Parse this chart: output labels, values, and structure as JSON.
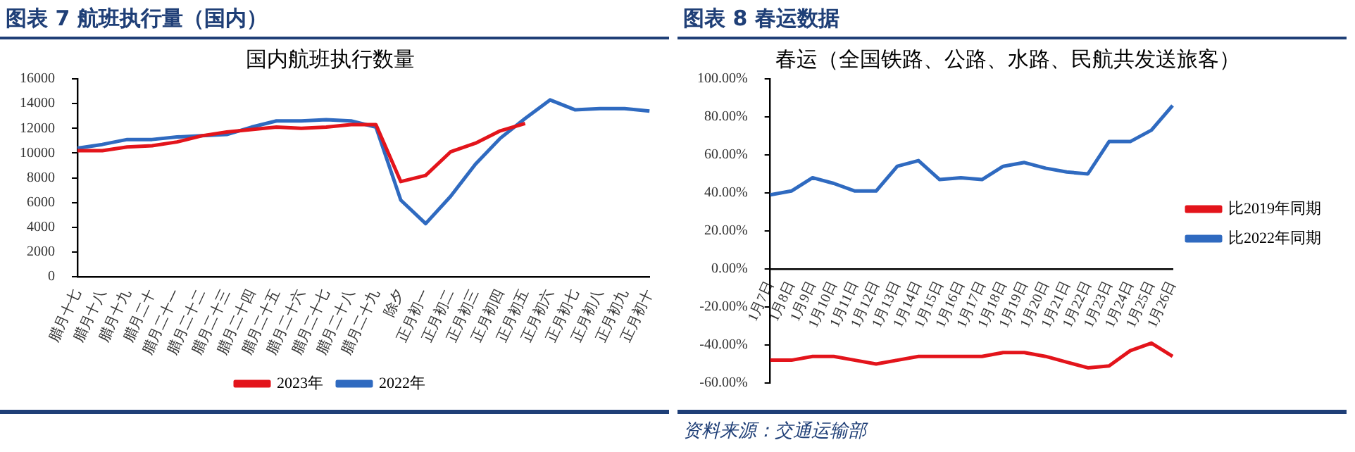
{
  "chart_data": [
    {
      "type": "line",
      "title": "图表 7 航班执行量（国内）",
      "subtitle": "国内航班执行数量",
      "categories": [
        "腊月十七",
        "腊月十八",
        "腊月十九",
        "腊月二十",
        "腊月二十一",
        "腊月二十二",
        "腊月二十三",
        "腊月二十四",
        "腊月二十五",
        "腊月二十六",
        "腊月二十七",
        "腊月二十八",
        "腊月二十九",
        "除夕",
        "正月初一",
        "正月初二",
        "正月初三",
        "正月初四",
        "正月初五",
        "正月初六",
        "正月初七",
        "正月初八",
        "正月初九",
        "正月初十"
      ],
      "series": [
        {
          "name": "2023年",
          "color": "#e3141b",
          "values": [
            10200,
            10200,
            10500,
            10600,
            10900,
            11400,
            11700,
            11900,
            12100,
            12000,
            12100,
            12300,
            12300,
            7700,
            8200,
            10100,
            10800,
            11800,
            12400,
            null,
            null,
            null,
            null,
            null
          ]
        },
        {
          "name": "2022年",
          "color": "#2f6ac0",
          "values": [
            10400,
            10700,
            11100,
            11100,
            11300,
            11400,
            11500,
            12100,
            12600,
            12600,
            12700,
            12600,
            12100,
            6200,
            4300,
            6500,
            9100,
            11200,
            12800,
            14300,
            13500,
            13600,
            13600,
            13400
          ]
        }
      ],
      "ylim": [
        0,
        16000
      ],
      "yticks": [
        0,
        2000,
        4000,
        6000,
        8000,
        10000,
        12000,
        14000,
        16000
      ],
      "grid": false,
      "legend": "bottom",
      "marker": "none"
    },
    {
      "type": "line",
      "title": "图表 8 春运数据",
      "subtitle": "春运（全国铁路、公路、水路、民航共发送旅客）",
      "categories": [
        "1月7日",
        "1月8日",
        "1月9日",
        "1月10日",
        "1月11日",
        "1月12日",
        "1月13日",
        "1月14日",
        "1月15日",
        "1月16日",
        "1月17日",
        "1月18日",
        "1月19日",
        "1月20日",
        "1月21日",
        "1月22日",
        "1月23日",
        "1月24日",
        "1月25日",
        "1月26日"
      ],
      "series": [
        {
          "name": "比2019年同期",
          "color": "#e3141b",
          "values": [
            -48,
            -48,
            -46,
            -46,
            -48,
            -50,
            -48,
            -46,
            -46,
            -46,
            -46,
            -44,
            -44,
            -46,
            -49,
            -52,
            -51,
            -43,
            -39,
            -46
          ]
        },
        {
          "name": "比2022年同期",
          "color": "#2f6ac0",
          "values": [
            39,
            41,
            48,
            45,
            41,
            41,
            54,
            57,
            47,
            48,
            47,
            54,
            56,
            53,
            51,
            50,
            67,
            67,
            73,
            86
          ]
        }
      ],
      "ylim": [
        -60,
        100
      ],
      "yticks": [
        {
          "value": -60,
          "label": "-60.00%"
        },
        {
          "value": -40,
          "label": "-40.00%"
        },
        {
          "value": -20,
          "label": "-20.00%"
        },
        {
          "value": 0,
          "label": "0.00%"
        },
        {
          "value": 20,
          "label": "20.00%"
        },
        {
          "value": 40,
          "label": "40.00%"
        },
        {
          "value": 60,
          "label": "60.00%"
        },
        {
          "value": 80,
          "label": "80.00%"
        },
        {
          "value": 100,
          "label": "100.00%"
        }
      ],
      "grid": false,
      "legend": "right",
      "marker": "none",
      "annotations": [
        "资料来源：交通运输部"
      ]
    }
  ]
}
